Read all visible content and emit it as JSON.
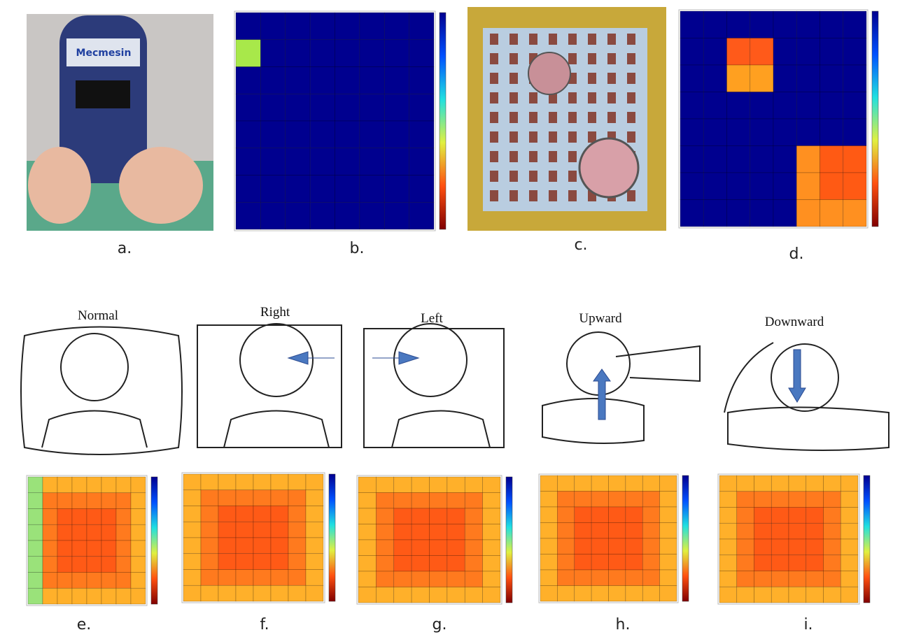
{
  "top_labels": [
    "a.",
    "b.",
    "c.",
    "d."
  ],
  "poses": [
    {
      "title": "Normal",
      "label": "e."
    },
    {
      "title": "Right",
      "label": "f."
    },
    {
      "title": "Left",
      "label": "g."
    },
    {
      "title": "Upward",
      "label": "h."
    },
    {
      "title": "Downward",
      "label": "i."
    }
  ]
}
